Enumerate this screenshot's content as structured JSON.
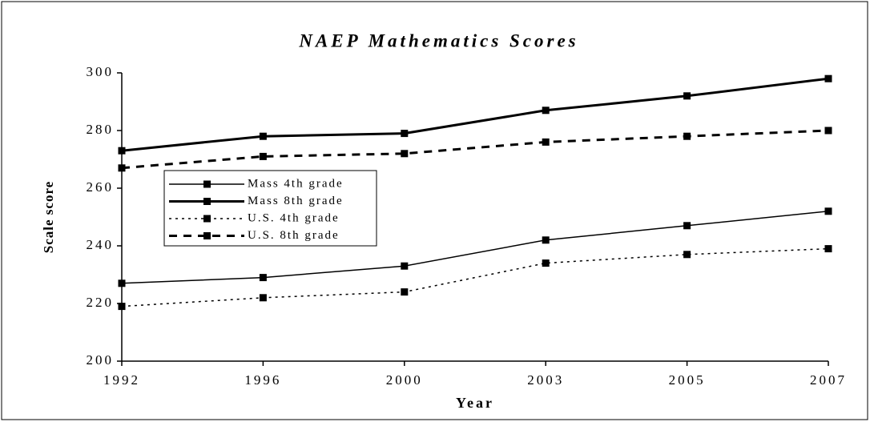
{
  "chart_data": {
    "type": "line",
    "title": "NAEP Mathematics Scores",
    "x_label": "Year",
    "y_label": "Scale score",
    "categories": [
      "1992",
      "1996",
      "2000",
      "2003",
      "2005",
      "2007"
    ],
    "series": [
      {
        "name": "Mass 4th grade",
        "color": "#000000",
        "line_style": "solid",
        "line_width": 1.5,
        "values": [
          227,
          229,
          233,
          242,
          247,
          252
        ]
      },
      {
        "name": "Mass 8th grade",
        "color": "#000000",
        "line_style": "solid",
        "line_width": 3,
        "values": [
          273,
          278,
          279,
          287,
          292,
          298
        ]
      },
      {
        "name": "U.S. 4th grade",
        "color": "#000000",
        "line_style": "dotted",
        "line_width": 1.5,
        "values": [
          219,
          222,
          224,
          234,
          237,
          239
        ]
      },
      {
        "name": "U.S. 8th grade",
        "color": "#000000",
        "line_style": "dashed",
        "line_width": 3,
        "values": [
          267,
          271,
          272,
          276,
          278,
          280
        ]
      }
    ],
    "ylim": [
      200,
      300
    ],
    "yticks": [
      200,
      220,
      240,
      260,
      280,
      300
    ],
    "grid": false,
    "legend": "left"
  }
}
